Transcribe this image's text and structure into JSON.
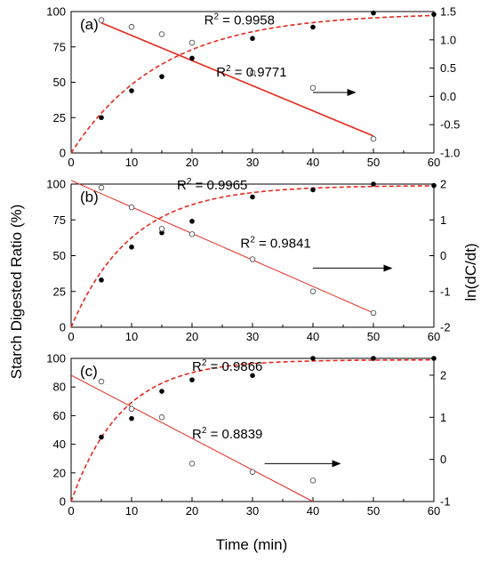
{
  "chart_data": [
    {
      "type": "scatter",
      "panel_label": "(a)",
      "xlim": [
        0,
        60
      ],
      "x_ticks": [
        "0",
        "10",
        "20",
        "30",
        "40",
        "50",
        "60"
      ],
      "ylim": [
        0,
        100
      ],
      "y_ticks": [
        "0",
        "25",
        "50",
        "75",
        "100"
      ],
      "y2lim": [
        -1.0,
        1.5
      ],
      "y2_ticks": [
        "-1.0",
        "-0.5",
        "0.0",
        "0.5",
        "1.0",
        "1.5"
      ],
      "series": [
        {
          "axis": "left",
          "marker": "filled-circle",
          "x": [
            5,
            10,
            15,
            20,
            30,
            40,
            50,
            60
          ],
          "y": [
            25,
            44,
            54,
            67,
            81,
            89,
            99,
            98
          ]
        },
        {
          "axis": "right",
          "marker": "open-circle",
          "x": [
            5,
            10,
            15,
            20,
            30,
            40,
            50
          ],
          "y": [
            1.35,
            1.23,
            1.1,
            0.95,
            0.42,
            0.15,
            -0.75
          ]
        }
      ],
      "fits": [
        {
          "axis": "left",
          "style": "dashed",
          "kind": "exponential",
          "ymax": 99,
          "k": 0.067,
          "x_range": [
            0,
            60
          ]
        },
        {
          "axis": "right",
          "style": "solid",
          "kind": "linear",
          "x_range": [
            5,
            50
          ],
          "y_range": [
            1.3,
            -0.7
          ]
        }
      ],
      "annotations": [
        {
          "text_a": "R",
          "sup": "2",
          "text_b": " = 0.9958",
          "x": 22,
          "y": 1.27
        },
        {
          "text_a": "R",
          "sup": "2",
          "text_b": " = 0.9771",
          "x": 24,
          "y": 0.35
        }
      ],
      "arrow": {
        "from": [
          40,
          0.07
        ],
        "to": [
          47,
          0.07
        ],
        "axis": "right"
      }
    },
    {
      "type": "scatter",
      "panel_label": "(b)",
      "xlim": [
        0,
        60
      ],
      "x_ticks": [
        "0",
        "10",
        "20",
        "30",
        "40",
        "50",
        "60"
      ],
      "ylim": [
        0,
        100
      ],
      "y_ticks": [
        "0",
        "25",
        "50",
        "75",
        "100"
      ],
      "y2lim": [
        -2,
        2
      ],
      "y2_ticks": [
        "-2",
        "-1",
        "0",
        "1",
        "2"
      ],
      "series": [
        {
          "axis": "left",
          "marker": "filled-circle",
          "x": [
            5,
            10,
            15,
            20,
            30,
            40,
            50,
            60
          ],
          "y": [
            33,
            56,
            66,
            74,
            91,
            96,
            100,
            99
          ]
        },
        {
          "axis": "right",
          "marker": "open-circle",
          "x": [
            5,
            10,
            15,
            20,
            30,
            40,
            50
          ],
          "y": [
            1.9,
            1.35,
            0.75,
            0.6,
            -0.1,
            -1.0,
            -1.6
          ]
        }
      ],
      "fits": [
        {
          "axis": "left",
          "style": "dashed",
          "kind": "exponential",
          "ymax": 99,
          "k": 0.1,
          "x_range": [
            0,
            60
          ]
        },
        {
          "axis": "right",
          "style": "solid",
          "kind": "linear",
          "x_range": [
            0,
            50
          ],
          "y_range": [
            2.1,
            -1.6
          ]
        }
      ],
      "annotations": [
        {
          "text_a": "R",
          "sup": "2",
          "text_b": " = 0.9965",
          "x": 17.5,
          "y": 1.85
        },
        {
          "text_a": "R",
          "sup": "2",
          "text_b": " = 0.9841",
          "x": 28,
          "y": 0.22
        }
      ],
      "arrow": {
        "from": [
          40,
          -0.35
        ],
        "to": [
          53,
          -0.35
        ],
        "axis": "right"
      }
    },
    {
      "type": "scatter",
      "panel_label": "(c)",
      "xlim": [
        0,
        60
      ],
      "x_ticks": [
        "0",
        "10",
        "20",
        "30",
        "40",
        "50",
        "60"
      ],
      "ylim": [
        0,
        100
      ],
      "y_ticks": [
        "0",
        "20",
        "40",
        "60",
        "80",
        "100"
      ],
      "y2lim": [
        -1,
        2.4
      ],
      "y2_ticks": [
        "-1",
        "0",
        "1",
        "2"
      ],
      "series": [
        {
          "axis": "left",
          "marker": "filled-circle",
          "x": [
            5,
            10,
            15,
            20,
            30,
            40,
            50,
            60
          ],
          "y": [
            45,
            58,
            77,
            85,
            88,
            100,
            100,
            100
          ]
        },
        {
          "axis": "right",
          "marker": "open-circle",
          "x": [
            5,
            10,
            15,
            20,
            30,
            40
          ],
          "y": [
            1.85,
            1.2,
            1.0,
            -0.1,
            -0.3,
            -0.5
          ]
        }
      ],
      "fits": [
        {
          "axis": "left",
          "style": "dashed",
          "kind": "exponential",
          "ymax": 99,
          "k": 0.12,
          "x_range": [
            0,
            60
          ]
        },
        {
          "axis": "right",
          "style": "solid",
          "kind": "linear",
          "x_range": [
            0,
            40
          ],
          "y_range": [
            2.0,
            -1.0
          ]
        }
      ],
      "annotations": [
        {
          "text_a": "R",
          "sup": "2",
          "text_b": " = 0.9866",
          "x": 20,
          "y": 2.1
        },
        {
          "text_a": "R",
          "sup": "2",
          "text_b": " = 0.8839",
          "x": 20,
          "y": 0.5
        }
      ],
      "arrow": {
        "from": [
          32,
          -0.1
        ],
        "to": [
          44.5,
          -0.1
        ],
        "axis": "right"
      }
    }
  ],
  "xlabel": "Time (min)",
  "ylabel_left": "Starch Digested Ratio (%)",
  "ylabel_right": "ln(dC/dt)",
  "colors": {
    "fit_line": "#e52a1f",
    "markers": "#000000",
    "arrow": "#000000"
  }
}
